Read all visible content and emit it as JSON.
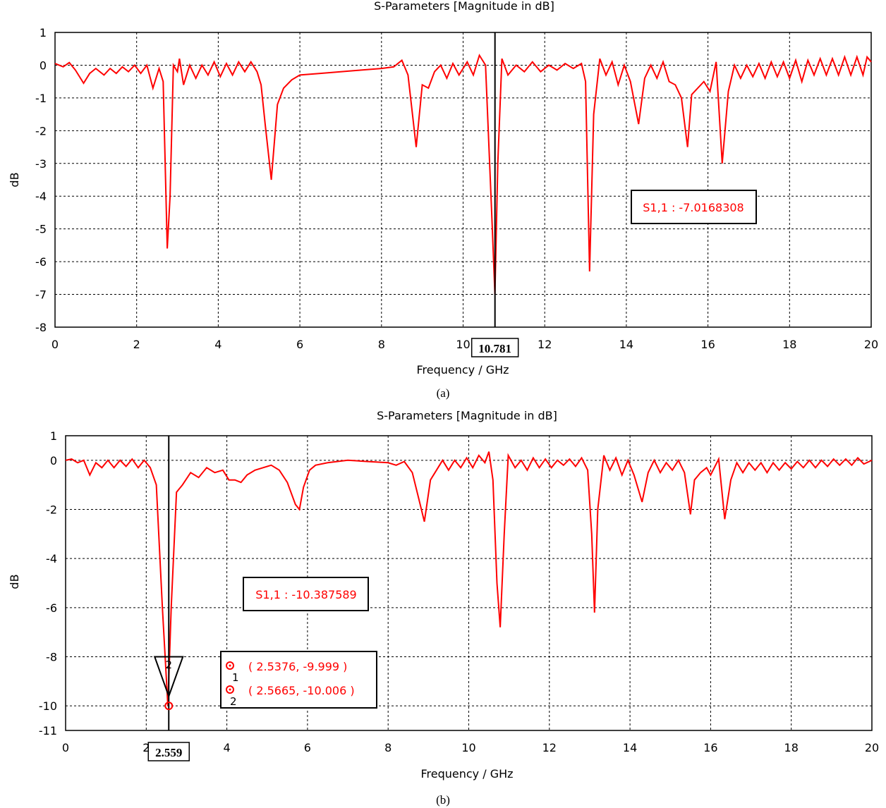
{
  "chart_data": [
    {
      "type": "line",
      "panel_label": "(a)",
      "title": "S-Parameters [Magnitude in dB]",
      "xlabel": "Frequency / GHz",
      "ylabel": "dB",
      "xlim": [
        0,
        20
      ],
      "ylim": [
        -8,
        1
      ],
      "xticks": [
        "0",
        "2",
        "4",
        "6",
        "8",
        "10",
        "12",
        "14",
        "16",
        "18",
        "20"
      ],
      "yticks": [
        "1",
        "0",
        "-1",
        "-2",
        "-3",
        "-4",
        "-5",
        "-6",
        "-7",
        "-8"
      ],
      "grid": true,
      "line_color": "#ff0000",
      "series": [
        {
          "points": [
            [
              0.0,
              0.05
            ],
            [
              0.2,
              -0.05
            ],
            [
              0.35,
              0.08
            ],
            [
              0.5,
              -0.15
            ],
            [
              0.7,
              -0.55
            ],
            [
              0.85,
              -0.25
            ],
            [
              1.0,
              -0.1
            ],
            [
              1.2,
              -0.3
            ],
            [
              1.35,
              -0.1
            ],
            [
              1.5,
              -0.25
            ],
            [
              1.65,
              -0.05
            ],
            [
              1.8,
              -0.2
            ],
            [
              1.95,
              0.0
            ],
            [
              2.1,
              -0.25
            ],
            [
              2.25,
              0.0
            ],
            [
              2.4,
              -0.7
            ],
            [
              2.55,
              -0.1
            ],
            [
              2.65,
              -0.5
            ],
            [
              2.75,
              -5.6
            ],
            [
              2.82,
              -4.0
            ],
            [
              2.9,
              0.0
            ],
            [
              3.0,
              -0.2
            ],
            [
              3.05,
              0.2
            ],
            [
              3.15,
              -0.6
            ],
            [
              3.3,
              0.0
            ],
            [
              3.45,
              -0.4
            ],
            [
              3.6,
              0.0
            ],
            [
              3.75,
              -0.3
            ],
            [
              3.9,
              0.1
            ],
            [
              4.05,
              -0.35
            ],
            [
              4.2,
              0.05
            ],
            [
              4.35,
              -0.3
            ],
            [
              4.5,
              0.1
            ],
            [
              4.65,
              -0.2
            ],
            [
              4.8,
              0.1
            ],
            [
              4.95,
              -0.2
            ],
            [
              5.05,
              -0.6
            ],
            [
              5.15,
              -1.8
            ],
            [
              5.3,
              -3.5
            ],
            [
              5.45,
              -1.2
            ],
            [
              5.6,
              -0.7
            ],
            [
              5.8,
              -0.45
            ],
            [
              6.0,
              -0.3
            ],
            [
              6.5,
              -0.25
            ],
            [
              7.0,
              -0.2
            ],
            [
              7.5,
              -0.15
            ],
            [
              8.0,
              -0.1
            ],
            [
              8.3,
              -0.05
            ],
            [
              8.5,
              0.15
            ],
            [
              8.65,
              -0.3
            ],
            [
              8.85,
              -2.5
            ],
            [
              9.0,
              -0.6
            ],
            [
              9.15,
              -0.7
            ],
            [
              9.3,
              -0.2
            ],
            [
              9.45,
              0.0
            ],
            [
              9.6,
              -0.4
            ],
            [
              9.75,
              0.05
            ],
            [
              9.9,
              -0.3
            ],
            [
              10.1,
              0.1
            ],
            [
              10.25,
              -0.3
            ],
            [
              10.4,
              0.3
            ],
            [
              10.55,
              0.0
            ],
            [
              10.7,
              -4.5
            ],
            [
              10.78,
              -7.0
            ],
            [
              10.85,
              -3.0
            ],
            [
              10.95,
              0.2
            ],
            [
              11.1,
              -0.3
            ],
            [
              11.3,
              0.0
            ],
            [
              11.5,
              -0.2
            ],
            [
              11.7,
              0.1
            ],
            [
              11.9,
              -0.2
            ],
            [
              12.1,
              0.0
            ],
            [
              12.3,
              -0.15
            ],
            [
              12.5,
              0.05
            ],
            [
              12.7,
              -0.1
            ],
            [
              12.9,
              0.05
            ],
            [
              13.0,
              -0.5
            ],
            [
              13.1,
              -6.3
            ],
            [
              13.2,
              -1.5
            ],
            [
              13.35,
              0.2
            ],
            [
              13.5,
              -0.3
            ],
            [
              13.65,
              0.1
            ],
            [
              13.8,
              -0.6
            ],
            [
              13.95,
              0.0
            ],
            [
              14.1,
              -0.5
            ],
            [
              14.3,
              -1.8
            ],
            [
              14.45,
              -0.4
            ],
            [
              14.6,
              0.0
            ],
            [
              14.75,
              -0.4
            ],
            [
              14.9,
              0.1
            ],
            [
              15.05,
              -0.5
            ],
            [
              15.2,
              -0.6
            ],
            [
              15.35,
              -1.0
            ],
            [
              15.5,
              -2.5
            ],
            [
              15.6,
              -0.9
            ],
            [
              15.75,
              -0.7
            ],
            [
              15.9,
              -0.5
            ],
            [
              16.05,
              -0.8
            ],
            [
              16.2,
              0.1
            ],
            [
              16.35,
              -3.0
            ],
            [
              16.5,
              -0.8
            ],
            [
              16.65,
              0.0
            ],
            [
              16.8,
              -0.4
            ],
            [
              16.95,
              0.0
            ],
            [
              17.1,
              -0.35
            ],
            [
              17.25,
              0.05
            ],
            [
              17.4,
              -0.4
            ],
            [
              17.55,
              0.1
            ],
            [
              17.7,
              -0.35
            ],
            [
              17.85,
              0.1
            ],
            [
              18.0,
              -0.4
            ],
            [
              18.15,
              0.15
            ],
            [
              18.3,
              -0.5
            ],
            [
              18.45,
              0.15
            ],
            [
              18.6,
              -0.3
            ],
            [
              18.75,
              0.2
            ],
            [
              18.9,
              -0.3
            ],
            [
              19.05,
              0.2
            ],
            [
              19.2,
              -0.3
            ],
            [
              19.35,
              0.25
            ],
            [
              19.5,
              -0.3
            ],
            [
              19.65,
              0.25
            ],
            [
              19.8,
              -0.3
            ],
            [
              19.9,
              0.25
            ],
            [
              20.0,
              0.1
            ]
          ]
        }
      ],
      "marker": {
        "x": 10.781,
        "x_label": "10.781"
      },
      "annotation": {
        "text": "S1,1 : -7.0168308"
      }
    },
    {
      "type": "line",
      "panel_label": "(b)",
      "title": "S-Parameters [Magnitude in dB]",
      "xlabel": "Frequency / GHz",
      "ylabel": "dB",
      "xlim": [
        0,
        20
      ],
      "ylim": [
        -11,
        1
      ],
      "xticks": [
        "0",
        "2",
        "4",
        "6",
        "8",
        "10",
        "12",
        "14",
        "16",
        "18",
        "20"
      ],
      "yticks": [
        "1",
        "0",
        "-2",
        "-4",
        "-6",
        "-8",
        "-10",
        "-11"
      ],
      "ytick_values": [
        1,
        0,
        -2,
        -4,
        -6,
        -8,
        -10,
        -11
      ],
      "grid": true,
      "line_color": "#ff0000",
      "series": [
        {
          "points": [
            [
              0.0,
              0.0
            ],
            [
              0.15,
              0.05
            ],
            [
              0.3,
              -0.1
            ],
            [
              0.45,
              0.0
            ],
            [
              0.6,
              -0.6
            ],
            [
              0.75,
              -0.1
            ],
            [
              0.9,
              -0.3
            ],
            [
              1.05,
              0.0
            ],
            [
              1.2,
              -0.3
            ],
            [
              1.35,
              0.0
            ],
            [
              1.5,
              -0.25
            ],
            [
              1.65,
              0.05
            ],
            [
              1.8,
              -0.3
            ],
            [
              1.95,
              0.0
            ],
            [
              2.1,
              -0.3
            ],
            [
              2.25,
              -1.0
            ],
            [
              2.4,
              -6.0
            ],
            [
              2.537,
              -10.0
            ],
            [
              2.62,
              -6.0
            ],
            [
              2.75,
              -1.3
            ],
            [
              2.9,
              -1.0
            ],
            [
              3.1,
              -0.5
            ],
            [
              3.3,
              -0.7
            ],
            [
              3.5,
              -0.3
            ],
            [
              3.7,
              -0.5
            ],
            [
              3.9,
              -0.4
            ],
            [
              4.05,
              -0.8
            ],
            [
              4.2,
              -0.8
            ],
            [
              4.35,
              -0.9
            ],
            [
              4.5,
              -0.6
            ],
            [
              4.7,
              -0.4
            ],
            [
              4.9,
              -0.3
            ],
            [
              5.1,
              -0.2
            ],
            [
              5.3,
              -0.4
            ],
            [
              5.5,
              -0.9
            ],
            [
              5.7,
              -1.8
            ],
            [
              5.8,
              -2.0
            ],
            [
              5.9,
              -1.1
            ],
            [
              6.05,
              -0.4
            ],
            [
              6.2,
              -0.2
            ],
            [
              6.5,
              -0.1
            ],
            [
              7.0,
              0.0
            ],
            [
              7.5,
              -0.05
            ],
            [
              8.0,
              -0.1
            ],
            [
              8.2,
              -0.2
            ],
            [
              8.4,
              -0.05
            ],
            [
              8.6,
              -0.5
            ],
            [
              8.75,
              -1.5
            ],
            [
              8.9,
              -2.5
            ],
            [
              9.05,
              -0.8
            ],
            [
              9.2,
              -0.4
            ],
            [
              9.35,
              0.0
            ],
            [
              9.5,
              -0.4
            ],
            [
              9.65,
              0.0
            ],
            [
              9.8,
              -0.3
            ],
            [
              9.95,
              0.1
            ],
            [
              10.1,
              -0.3
            ],
            [
              10.25,
              0.2
            ],
            [
              10.4,
              -0.1
            ],
            [
              10.5,
              0.35
            ],
            [
              10.6,
              -0.8
            ],
            [
              10.7,
              -5.0
            ],
            [
              10.78,
              -6.8
            ],
            [
              10.88,
              -3.0
            ],
            [
              10.98,
              0.2
            ],
            [
              11.15,
              -0.3
            ],
            [
              11.3,
              0.0
            ],
            [
              11.45,
              -0.4
            ],
            [
              11.6,
              0.1
            ],
            [
              11.75,
              -0.3
            ],
            [
              11.9,
              0.05
            ],
            [
              12.05,
              -0.3
            ],
            [
              12.2,
              0.0
            ],
            [
              12.35,
              -0.2
            ],
            [
              12.5,
              0.05
            ],
            [
              12.65,
              -0.25
            ],
            [
              12.8,
              0.1
            ],
            [
              12.95,
              -0.4
            ],
            [
              13.05,
              -3.0
            ],
            [
              13.12,
              -6.2
            ],
            [
              13.2,
              -2.0
            ],
            [
              13.35,
              0.2
            ],
            [
              13.5,
              -0.4
            ],
            [
              13.65,
              0.1
            ],
            [
              13.8,
              -0.6
            ],
            [
              13.95,
              0.0
            ],
            [
              14.1,
              -0.6
            ],
            [
              14.3,
              -1.7
            ],
            [
              14.45,
              -0.5
            ],
            [
              14.6,
              0.0
            ],
            [
              14.75,
              -0.5
            ],
            [
              14.9,
              -0.1
            ],
            [
              15.05,
              -0.4
            ],
            [
              15.2,
              0.0
            ],
            [
              15.35,
              -0.5
            ],
            [
              15.5,
              -2.2
            ],
            [
              15.6,
              -0.8
            ],
            [
              15.75,
              -0.5
            ],
            [
              15.9,
              -0.3
            ],
            [
              16.0,
              -0.6
            ],
            [
              16.2,
              0.05
            ],
            [
              16.35,
              -2.4
            ],
            [
              16.5,
              -0.8
            ],
            [
              16.65,
              -0.1
            ],
            [
              16.8,
              -0.5
            ],
            [
              16.95,
              -0.1
            ],
            [
              17.1,
              -0.4
            ],
            [
              17.25,
              -0.1
            ],
            [
              17.4,
              -0.5
            ],
            [
              17.55,
              -0.1
            ],
            [
              17.7,
              -0.4
            ],
            [
              17.85,
              -0.1
            ],
            [
              18.0,
              -0.35
            ],
            [
              18.15,
              -0.05
            ],
            [
              18.3,
              -0.3
            ],
            [
              18.45,
              0.0
            ],
            [
              18.6,
              -0.3
            ],
            [
              18.75,
              0.0
            ],
            [
              18.9,
              -0.25
            ],
            [
              19.05,
              0.05
            ],
            [
              19.2,
              -0.2
            ],
            [
              19.35,
              0.05
            ],
            [
              19.5,
              -0.2
            ],
            [
              19.65,
              0.1
            ],
            [
              19.8,
              -0.15
            ],
            [
              20.0,
              0.0
            ]
          ]
        }
      ],
      "marker": {
        "x": 2.559,
        "x_label": "2.559",
        "triangle_label": "2"
      },
      "annotation": {
        "text": "S1,1 : -10.387589"
      },
      "points_legend": [
        {
          "index": "1",
          "text": "( 2.5376, -9.999 )",
          "x": 2.5376,
          "y": -9.999
        },
        {
          "index": "2",
          "text": "( 2.5665, -10.006 )",
          "x": 2.5665,
          "y": -10.006
        }
      ]
    }
  ]
}
